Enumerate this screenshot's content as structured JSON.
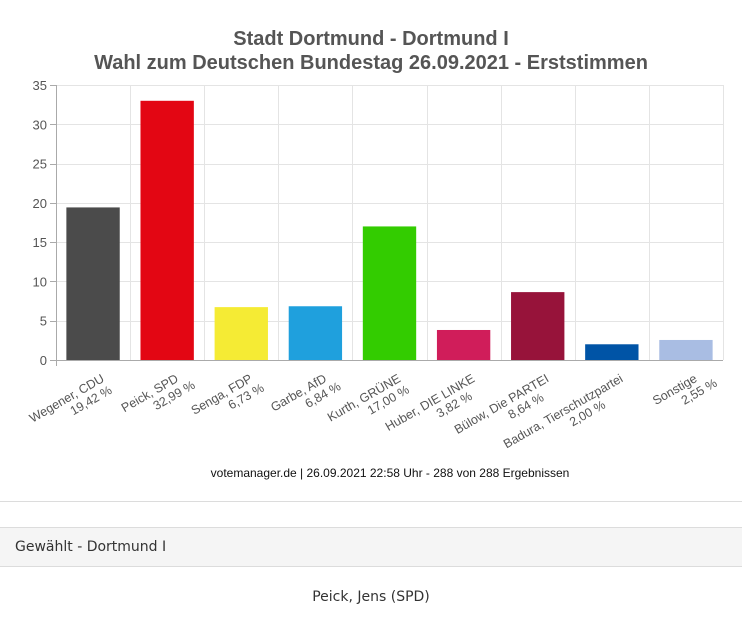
{
  "chart_data": {
    "type": "bar",
    "title": [
      "Stadt Dortmund - Dortmund I",
      "Wahl zum Deutschen Bundestag 26.09.2021  - Erststimmen"
    ],
    "xlabel": "",
    "ylabel": "",
    "ylim": [
      0,
      35
    ],
    "yticks": [
      0,
      5,
      10,
      15,
      20,
      25,
      30,
      35
    ],
    "grid": true,
    "legend": "none",
    "categories": [
      [
        "Wegener, CDU",
        "19,42 %"
      ],
      [
        "Peick, SPD",
        "32,99 %"
      ],
      [
        "Senga, FDP",
        "6,73 %"
      ],
      [
        "Garbe, AfD",
        "6,84 %"
      ],
      [
        "Kurth, GRÜNE",
        "17,00 %"
      ],
      [
        "Huber, DIE LINKE",
        "3,82 %"
      ],
      [
        "Bülow, Die PARTEI",
        "8,64 %"
      ],
      [
        "Badura, Tierschutzpartei",
        "2,00 %"
      ],
      [
        "Sonstige",
        "2,55 %"
      ]
    ],
    "values": [
      19.42,
      32.99,
      6.73,
      6.84,
      17.0,
      3.82,
      8.64,
      2.0,
      2.55
    ],
    "colors": [
      "#4b4b4b",
      "#e30613",
      "#f5eb34",
      "#1fa0dd",
      "#33cc00",
      "#d01d5a",
      "#97133a",
      "#0054a6",
      "#a9bde3"
    ],
    "credit": "votemanager.de | 26.09.2021 22:58 Uhr - 288 von 288 Ergebnissen"
  },
  "elected": {
    "header": "Gewählt - Dortmund I",
    "name": "Peick, Jens (SPD)"
  }
}
